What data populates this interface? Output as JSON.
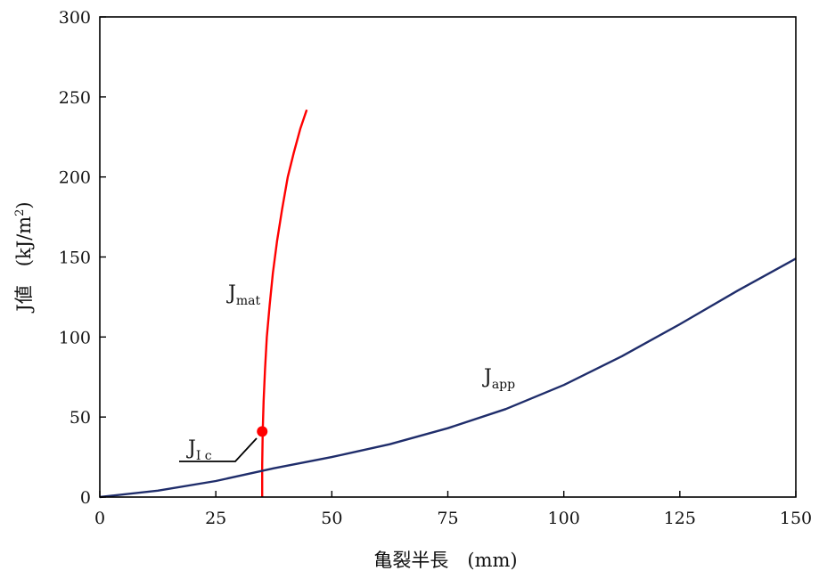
{
  "chart_data": {
    "type": "line",
    "xlabel": "亀裂半長　(mm)",
    "ylabel": "J値　(kJ/m²)",
    "ylabel_prefix": "J値　(kJ/m",
    "ylabel_sup": "2",
    "ylabel_suffix": ")",
    "xlim": [
      0,
      150
    ],
    "ylim": [
      0,
      300
    ],
    "xticks": [
      "0",
      "25",
      "50",
      "75",
      "100",
      "125",
      "150"
    ],
    "yticks": [
      "0",
      "50",
      "100",
      "150",
      "200",
      "250",
      "300"
    ],
    "grid": false,
    "colors": {
      "jmat": "#ff0000",
      "japp": "#1f2d6b",
      "axis": "#000000"
    },
    "series": [
      {
        "key": "jmat",
        "name": "Jmat",
        "name_main": "J",
        "name_sub": "mat",
        "x": [
          35.0,
          35.0,
          35.1,
          35.3,
          35.6,
          36.0,
          36.6,
          37.3,
          38.2,
          39.3,
          40.5,
          41.8,
          43.2,
          44.6
        ],
        "y": [
          0,
          20,
          41,
          60,
          80,
          100,
          120,
          140,
          160,
          180,
          200,
          215,
          230,
          242
        ]
      },
      {
        "key": "japp",
        "name": "Japp",
        "name_main": "J",
        "name_sub": "app",
        "x": [
          0,
          12.5,
          25,
          37.5,
          50,
          62.5,
          75,
          87.5,
          100,
          112.5,
          125,
          137.5,
          150
        ],
        "y": [
          0,
          4,
          10,
          18,
          25,
          33,
          43,
          55,
          70,
          88,
          108,
          129,
          149
        ]
      }
    ],
    "marker": {
      "x": 35,
      "y": 41,
      "label": "JIc",
      "label_main": "J",
      "label_sub": "I c"
    }
  }
}
